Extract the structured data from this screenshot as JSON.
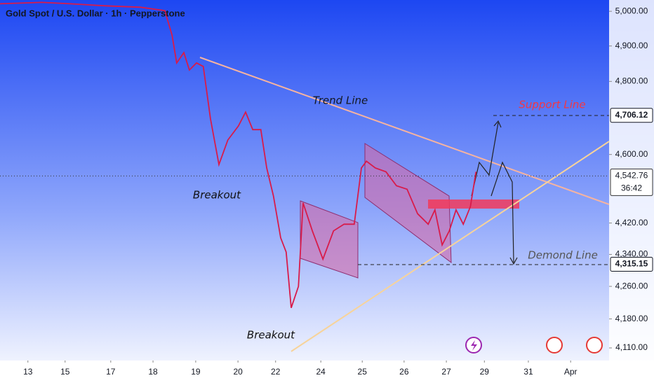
{
  "chart_data": {
    "type": "line",
    "title": "Gold Spot / U.S. Dollar · 1h · Pepperstone",
    "color": "#d81b4a",
    "log_scale": true,
    "grid": false,
    "x": [
      -0.66,
      0.33,
      1.0,
      1.83,
      2.66,
      3.24,
      3.41,
      3.52,
      3.69,
      3.82,
      3.99,
      4.15,
      4.32,
      4.52,
      4.73,
      4.98,
      5.15,
      5.32,
      5.51,
      5.65,
      5.81,
      5.98,
      6.11,
      6.23,
      6.4,
      6.51,
      6.73,
      6.98,
      7.23,
      7.48,
      7.72,
      7.89,
      8.01,
      8.22,
      8.47,
      8.72,
      8.97,
      9.22,
      9.47,
      9.63,
      9.8,
      9.97,
      10.13,
      10.3,
      10.47,
      10.6
    ],
    "values": [
      5022,
      5026,
      5022,
      5016,
      5012,
      5002,
      4931,
      4852,
      4881,
      4832,
      4852,
      4842,
      4696,
      4573,
      4639,
      4677,
      4715,
      4667,
      4667,
      4564,
      4490,
      4382,
      4346,
      4207,
      4260,
      4472,
      4400,
      4328,
      4400,
      4417,
      4417,
      4564,
      4582,
      4564,
      4554,
      4517,
      4508,
      4444,
      4417,
      4454,
      4364,
      4400,
      4454,
      4417,
      4463,
      4554
    ],
    "xlim": [
      -0.66,
      13.75
    ],
    "ylim": [
      4080,
      5033
    ],
    "xticks": [
      {
        "value": 0,
        "label": "13"
      },
      {
        "value": 0.88,
        "label": "15"
      },
      {
        "value": 1.96,
        "label": "17"
      },
      {
        "value": 2.96,
        "label": "18"
      },
      {
        "value": 3.97,
        "label": "19"
      },
      {
        "value": 4.97,
        "label": "20"
      },
      {
        "value": 5.86,
        "label": "22"
      },
      {
        "value": 6.93,
        "label": "24"
      },
      {
        "value": 7.91,
        "label": "25"
      },
      {
        "value": 8.9,
        "label": "26"
      },
      {
        "value": 9.9,
        "label": "27"
      },
      {
        "value": 10.8,
        "label": "29"
      },
      {
        "value": 11.84,
        "label": "31"
      },
      {
        "value": 12.84,
        "label": "Apr"
      }
    ],
    "yticks": [
      {
        "value": 5000,
        "label": "5,000.00"
      },
      {
        "value": 4900,
        "label": "4,900.00"
      },
      {
        "value": 4800,
        "label": "4,800.00"
      },
      {
        "value": 4600,
        "label": "4,600.00"
      },
      {
        "value": 4420,
        "label": "4,420.00"
      },
      {
        "value": 4340,
        "label": "4,340.00"
      },
      {
        "value": 4260,
        "label": "4,260.00"
      },
      {
        "value": 4180,
        "label": "4,180.00"
      },
      {
        "value": 4110,
        "label": "4,110.00"
      }
    ],
    "price_labels": [
      {
        "value": 4706.12,
        "label": "4,706.12"
      },
      {
        "value": 4542.76,
        "label": "4,542.76",
        "countdown": "36:42"
      },
      {
        "value": 4315.15,
        "label": "4,315.15"
      }
    ],
    "annotations": [
      "Trend Line",
      "Support Line",
      "Demond Line",
      "Breakout",
      "Breakout"
    ]
  }
}
